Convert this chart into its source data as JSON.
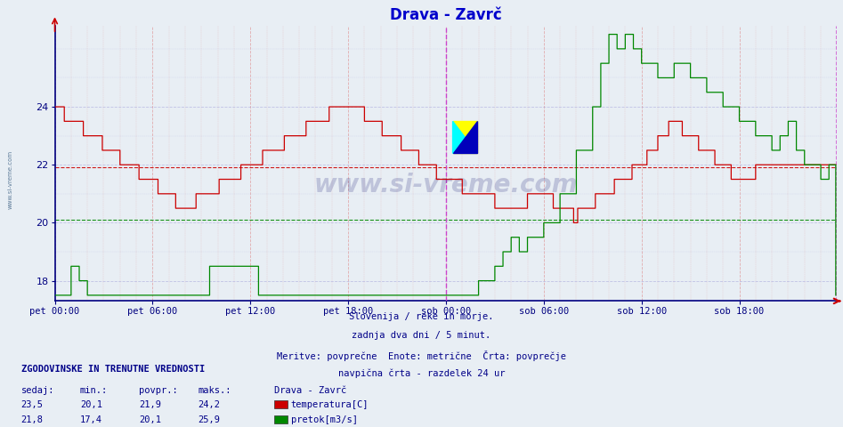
{
  "title": "Drava - Zavrč",
  "title_color": "#0000cc",
  "bg_color": "#e8eef4",
  "plot_bg_color": "#e8eef4",
  "tick_color": "#000080",
  "grid_color_v": "#dd8888",
  "grid_color_h": "#aaaadd",
  "avg_line_temp": 21.9,
  "avg_line_pretok": 20.1,
  "avg_line_temp_color": "#cc0000",
  "avg_line_pretok_color": "#008800",
  "vline_color": "#cc44cc",
  "xlabel_ticks": [
    "pet 00:00",
    "pet 06:00",
    "pet 12:00",
    "pet 18:00",
    "sob 00:00",
    "sob 06:00",
    "sob 12:00",
    "sob 18:00"
  ],
  "yticks": [
    18,
    20,
    22,
    24
  ],
  "ymin": 17.3,
  "ymax": 26.8,
  "n_points": 576,
  "watermark": "www.si-vreme.com",
  "footer_lines": [
    "Slovenija / reke in morje.",
    "zadnja dva dni / 5 minut.",
    "Meritve: povprečne  Enote: metrične  Črta: povprečje",
    "navpična črta - razdelek 24 ur"
  ],
  "legend_title": "Drava - Zavrč",
  "legend_items": [
    {
      "label": "temperatura[C]",
      "color": "#cc0000"
    },
    {
      "label": "pretok[m3/s]",
      "color": "#008800"
    }
  ],
  "stats_header": "ZGODOVINSKE IN TRENUTNE VREDNOSTI",
  "stats_cols": [
    "sedaj:",
    "min.:",
    "povpr.:",
    "maks.:"
  ],
  "stats_row1": [
    "23,5",
    "20,1",
    "21,9",
    "24,2"
  ],
  "stats_row2": [
    "21,8",
    "17,4",
    "20,1",
    "25,9"
  ]
}
